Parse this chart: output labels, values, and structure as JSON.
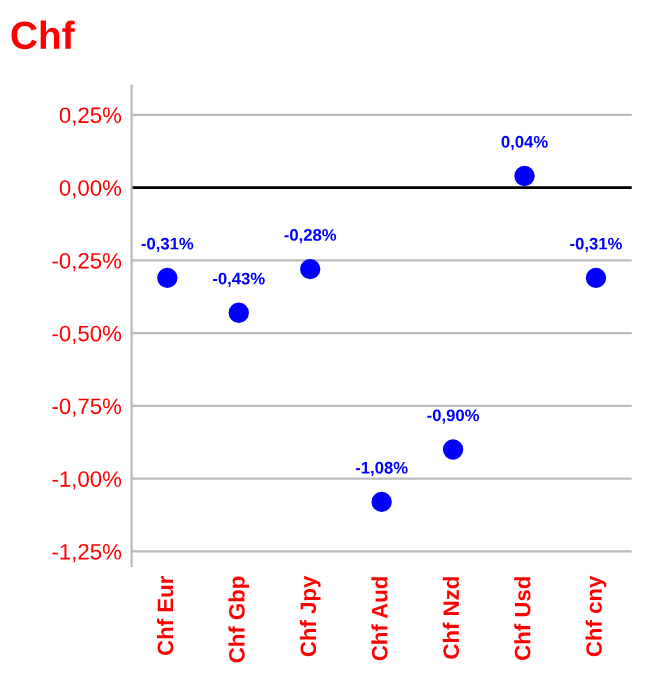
{
  "chart_data": {
    "type": "scatter",
    "title": "Chf",
    "categories": [
      "Chf Eur",
      "Chf Gbp",
      "Chf Jpy",
      "Chf Aud",
      "Chf Nzd",
      "Chf Usd",
      "Chf cny"
    ],
    "series": [
      {
        "color": "#0000ff",
        "values": [
          -0.31,
          -0.43,
          -0.28,
          -1.08,
          -0.9,
          0.04,
          -0.31
        ],
        "value_labels": [
          "-0,31%",
          "-0,43%",
          "-0,28%",
          "-1,08%",
          "-0,90%",
          "0,04%",
          "-0,31%"
        ]
      }
    ],
    "ylim": [
      -1.3,
      0.35
    ],
    "yticks": [
      {
        "value": 0.25,
        "label": "0,25%"
      },
      {
        "value": 0,
        "label": "0,00%"
      },
      {
        "value": -0.25,
        "label": "-0,25%"
      },
      {
        "value": -0.5,
        "label": "-0,50%"
      },
      {
        "value": -0.75,
        "label": "-0,75%"
      },
      {
        "value": -1,
        "label": "-1,00%"
      },
      {
        "value": -1.25,
        "label": "-1,25%"
      }
    ],
    "grid": "y",
    "marker": "circle",
    "legend": false,
    "ref_lines": [
      {
        "axis": "y",
        "value": 0,
        "color": "#000000"
      }
    ]
  }
}
